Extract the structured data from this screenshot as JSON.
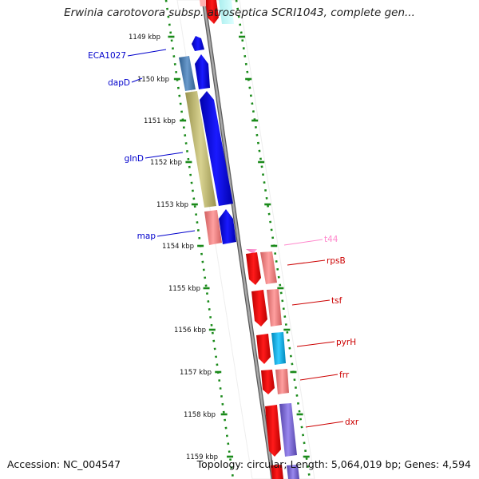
{
  "title": "Erwinia carotovora subsp. atroseptica SCRI1043, complete gen...",
  "accession": "Accession: NC_004547",
  "topology": "Topology: circular; Length: 5,064,019 bp; Genes: 4,594",
  "ticks": [
    {
      "label": "1149 kbp",
      "kbp": 1149
    },
    {
      "label": "1150 kbp",
      "kbp": 1150
    },
    {
      "label": "1151 kbp",
      "kbp": 1151
    },
    {
      "label": "1152 kbp",
      "kbp": 1152
    },
    {
      "label": "1153 kbp",
      "kbp": 1153
    },
    {
      "label": "1154 kbp",
      "kbp": 1154
    },
    {
      "label": "1155 kbp",
      "kbp": 1155
    },
    {
      "label": "1156 kbp",
      "kbp": 1156
    },
    {
      "label": "1157 kbp",
      "kbp": 1157
    },
    {
      "label": "1158 kbp",
      "kbp": 1158
    },
    {
      "label": "1159 kbp",
      "kbp": 1159
    }
  ],
  "left_genes": [
    {
      "name": "ECA1027",
      "color": "#0000cc"
    },
    {
      "name": "dapD",
      "color": "#0000cc"
    },
    {
      "name": "glnD",
      "color": "#0000cc"
    },
    {
      "name": "map",
      "color": "#0000cc"
    }
  ],
  "right_genes": [
    {
      "name": "t44",
      "color": "#ff88cc"
    },
    {
      "name": "rpsB",
      "color": "#cc0000"
    },
    {
      "name": "tsf",
      "color": "#cc0000"
    },
    {
      "name": "pyrH",
      "color": "#cc0000"
    },
    {
      "name": "frr",
      "color": "#cc0000"
    },
    {
      "name": "dxr",
      "color": "#cc0000"
    }
  ],
  "colors": {
    "backbone": "#888888",
    "tick_dots": "#1a8a1a",
    "forward_strand": "#0000ee",
    "reverse_strand": "#ee0000",
    "cog_steelblue": "#4b7fb0",
    "cog_olive": "#c0ba70",
    "cog_salmon": "#ee8080",
    "cog_cyan": "#11aadd",
    "cog_purple": "#7766cc",
    "cog_pink": "#ff99cc"
  }
}
